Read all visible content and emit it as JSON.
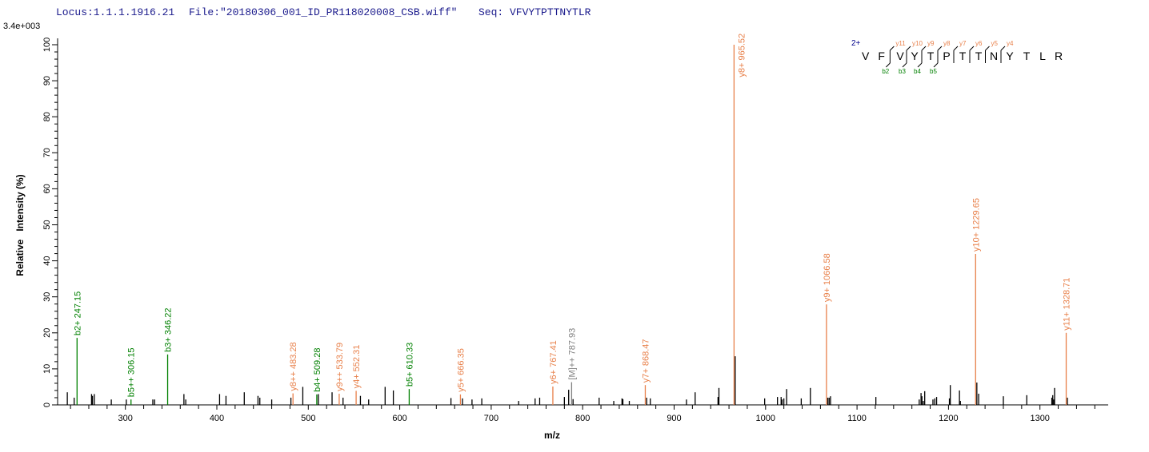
{
  "header": {
    "locus": "Locus:1.1.1.1916.21",
    "file": "File:\"20180306_001_ID_PR118020008_CSB.wiff\"",
    "seq": "Seq: VFVYTPTTNYTLR"
  },
  "colors": {
    "b_ion": "#008000",
    "y_ion": "#e8804a",
    "precursor": "#808080",
    "unassigned": "#000000",
    "header": "#1a1a8c"
  },
  "sequence_annotation": {
    "charge": "2+",
    "residues": [
      "V",
      "F",
      "V",
      "Y",
      "T",
      "P",
      "T",
      "T",
      "N",
      "Y",
      "T",
      "L",
      "R"
    ],
    "y_ions": [
      "y11",
      "y10",
      "y9",
      "y8",
      "y7",
      "y6",
      "y5",
      "y4"
    ],
    "b_ions": [
      "b2",
      "b3",
      "b4",
      "b5"
    ]
  },
  "chart_data": {
    "type": "bar",
    "title": "",
    "scale_label": "3.4e+003",
    "xlabel": "m/z",
    "ylabel": "Relative   Intensity (%)",
    "xlim": [
      233,
      1372
    ],
    "ylim": [
      0,
      100
    ],
    "xticks": [
      300,
      400,
      500,
      600,
      700,
      800,
      900,
      1000,
      1100,
      1200,
      1300
    ],
    "yticks": [
      0,
      10,
      20,
      30,
      40,
      50,
      60,
      70,
      80,
      90,
      100
    ],
    "grid": false,
    "annotated_peaks": [
      {
        "mz": 247.15,
        "intensity": 18.6,
        "label": "b2+ 247.15",
        "type": "b"
      },
      {
        "mz": 306.15,
        "intensity": 1.5,
        "label": "b5++ 306.15",
        "type": "b"
      },
      {
        "mz": 346.22,
        "intensity": 14.0,
        "label": "b3+ 346.22",
        "type": "b"
      },
      {
        "mz": 483.28,
        "intensity": 3.2,
        "label": "y8++ 483.28",
        "type": "y"
      },
      {
        "mz": 509.28,
        "intensity": 2.9,
        "label": "b4+ 509.28",
        "type": "b"
      },
      {
        "mz": 533.79,
        "intensity": 3.1,
        "label": "y9++ 533.79",
        "type": "y"
      },
      {
        "mz": 552.31,
        "intensity": 3.9,
        "label": "y4+ 552.31",
        "type": "y"
      },
      {
        "mz": 610.33,
        "intensity": 4.4,
        "label": "b5+ 610.33",
        "type": "b"
      },
      {
        "mz": 666.35,
        "intensity": 2.9,
        "label": "y5+ 666.35",
        "type": "y"
      },
      {
        "mz": 767.41,
        "intensity": 5.1,
        "label": "y6+ 767.41",
        "type": "y"
      },
      {
        "mz": 787.93,
        "intensity": 6.3,
        "label": "[M]++ 787.93",
        "type": "precursor"
      },
      {
        "mz": 868.47,
        "intensity": 5.5,
        "label": "y7+ 868.47",
        "type": "y"
      },
      {
        "mz": 965.52,
        "intensity": 100,
        "label": "y8+ 965.52",
        "type": "y"
      },
      {
        "mz": 1066.58,
        "intensity": 27.9,
        "label": "y9+ 1066.58",
        "type": "y"
      },
      {
        "mz": 1229.65,
        "intensity": 41.9,
        "label": "y10+ 1229.65",
        "type": "y"
      },
      {
        "mz": 1328.71,
        "intensity": 20.0,
        "label": "y11+ 1328.71",
        "type": "y"
      }
    ],
    "unassigned_peaks": [
      [
        236.5,
        3.5
      ],
      [
        244,
        2
      ],
      [
        263,
        3
      ],
      [
        264,
        2.5
      ],
      [
        266,
        3
      ],
      [
        284.6,
        1.5
      ],
      [
        301,
        1.5
      ],
      [
        330,
        1.5
      ],
      [
        332,
        1.5
      ],
      [
        364,
        3
      ],
      [
        366,
        1.5
      ],
      [
        403,
        3
      ],
      [
        410,
        2.5
      ],
      [
        430,
        3.5
      ],
      [
        445,
        2.5
      ],
      [
        447,
        2
      ],
      [
        460,
        1.5
      ],
      [
        481,
        2
      ],
      [
        494,
        5
      ],
      [
        511,
        3
      ],
      [
        526,
        3.5
      ],
      [
        538,
        2
      ],
      [
        557,
        2.5
      ],
      [
        566,
        1.5
      ],
      [
        584,
        5
      ],
      [
        593,
        4
      ],
      [
        656,
        1.9
      ],
      [
        668.6,
        1.8
      ],
      [
        679,
        1.5
      ],
      [
        689.7,
        1.8
      ],
      [
        730,
        1.1
      ],
      [
        748,
        1.8
      ],
      [
        753,
        2
      ],
      [
        780,
        2.2
      ],
      [
        784.7,
        4.2
      ],
      [
        789.5,
        1.6
      ],
      [
        818,
        2
      ],
      [
        834,
        1.1
      ],
      [
        843,
        1.8
      ],
      [
        844,
        1.6
      ],
      [
        851,
        1.1
      ],
      [
        870,
        2
      ],
      [
        874,
        1.8
      ],
      [
        913.5,
        1.5
      ],
      [
        923,
        3.5
      ],
      [
        948,
        2.2
      ],
      [
        949,
        4.7
      ],
      [
        966.8,
        13.5
      ],
      [
        999,
        1.8
      ],
      [
        1013,
        2.2
      ],
      [
        1017,
        2.2
      ],
      [
        1018,
        1.5
      ],
      [
        1020,
        1.8
      ],
      [
        1023,
        4.4
      ],
      [
        1039,
        1.8
      ],
      [
        1049,
        4.7
      ],
      [
        1068,
        2
      ],
      [
        1069.5,
        2
      ],
      [
        1071,
        2.4
      ],
      [
        1120.6,
        2.2
      ],
      [
        1168,
        1.5
      ],
      [
        1170,
        3.3
      ],
      [
        1171,
        2.4
      ],
      [
        1172.5,
        1.1
      ],
      [
        1174,
        3.8
      ],
      [
        1183,
        1.5
      ],
      [
        1185,
        1.8
      ],
      [
        1187,
        2.2
      ],
      [
        1201,
        1.8
      ],
      [
        1202,
        5.5
      ],
      [
        1212,
        4
      ],
      [
        1213,
        1.1
      ],
      [
        1231,
        6.2
      ],
      [
        1233,
        3.1
      ],
      [
        1260,
        2.4
      ],
      [
        1285.6,
        2.7
      ],
      [
        1313,
        2
      ],
      [
        1314,
        2.7
      ],
      [
        1315,
        1.5
      ],
      [
        1316,
        4.7
      ],
      [
        1330,
        2
      ]
    ]
  }
}
